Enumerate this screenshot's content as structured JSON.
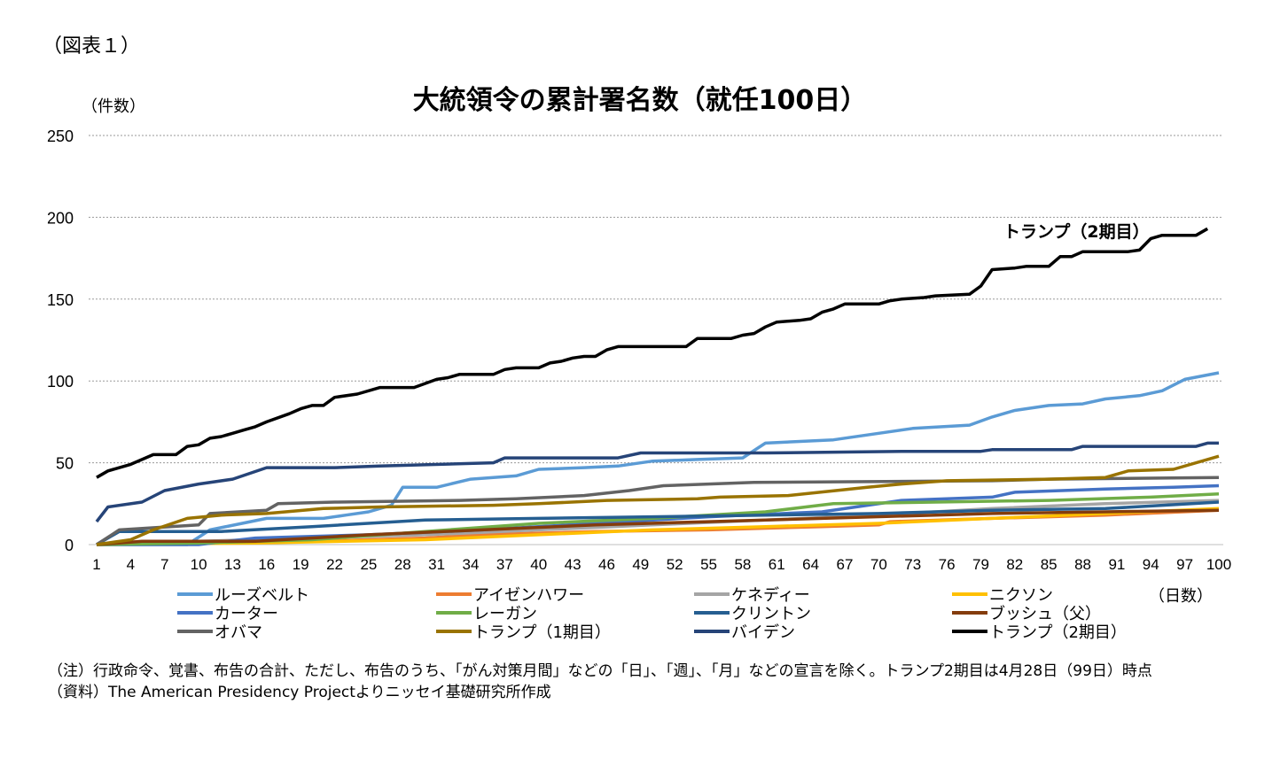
{
  "figure_label": "（図表１）",
  "chart_data": {
    "type": "line",
    "title": "大統領令の累計署名数（就任100日）",
    "ylabel": "（件数）",
    "xlabel": "（日数）",
    "ylim": [
      0,
      250
    ],
    "yticks": [
      0,
      50,
      100,
      150,
      200,
      250
    ],
    "xticks": [
      1,
      4,
      7,
      10,
      13,
      16,
      19,
      22,
      25,
      28,
      31,
      34,
      37,
      40,
      43,
      46,
      49,
      52,
      55,
      58,
      61,
      64,
      67,
      70,
      73,
      76,
      79,
      82,
      85,
      88,
      91,
      94,
      97,
      100
    ],
    "xlim": [
      1,
      100
    ],
    "grid": "horizontal dotted",
    "legend_position": "bottom",
    "annotation": {
      "text": "トランプ（2期目）",
      "x": 88,
      "y": 200
    },
    "series": [
      {
        "name": "ルーズベルト",
        "color": "#5b9bd5",
        "points": [
          [
            1,
            0
          ],
          [
            9,
            0
          ],
          [
            11,
            9
          ],
          [
            16,
            16
          ],
          [
            21,
            16
          ],
          [
            23,
            18
          ],
          [
            25,
            20
          ],
          [
            27,
            24
          ],
          [
            28,
            35
          ],
          [
            31,
            35
          ],
          [
            34,
            40
          ],
          [
            38,
            42
          ],
          [
            40,
            46
          ],
          [
            44,
            47
          ],
          [
            47,
            48
          ],
          [
            50,
            51
          ],
          [
            54,
            52
          ],
          [
            58,
            53
          ],
          [
            60,
            62
          ],
          [
            66,
            64
          ],
          [
            70,
            68
          ],
          [
            73,
            71
          ],
          [
            78,
            73
          ],
          [
            80,
            78
          ],
          [
            82,
            82
          ],
          [
            85,
            85
          ],
          [
            88,
            86
          ],
          [
            90,
            89
          ],
          [
            93,
            91
          ],
          [
            95,
            94
          ],
          [
            97,
            101
          ],
          [
            100,
            105
          ]
        ]
      },
      {
        "name": "アイゼンハワー",
        "color": "#ed7d31",
        "points": [
          [
            1,
            0
          ],
          [
            20,
            2
          ],
          [
            30,
            4
          ],
          [
            35,
            6
          ],
          [
            45,
            8
          ],
          [
            55,
            9
          ],
          [
            65,
            11
          ],
          [
            70,
            12
          ],
          [
            71,
            14
          ],
          [
            80,
            16
          ],
          [
            90,
            18
          ],
          [
            100,
            21
          ]
        ]
      },
      {
        "name": "ケネディー",
        "color": "#a5a5a5",
        "points": [
          [
            1,
            0
          ],
          [
            10,
            2
          ],
          [
            20,
            4
          ],
          [
            30,
            6
          ],
          [
            40,
            9
          ],
          [
            50,
            12
          ],
          [
            60,
            15
          ],
          [
            70,
            18
          ],
          [
            80,
            22
          ],
          [
            90,
            25
          ],
          [
            100,
            27
          ]
        ]
      },
      {
        "name": "ニクソン",
        "color": "#ffc000",
        "points": [
          [
            1,
            0
          ],
          [
            15,
            1
          ],
          [
            30,
            3
          ],
          [
            40,
            6
          ],
          [
            50,
            9
          ],
          [
            60,
            11
          ],
          [
            70,
            13
          ],
          [
            80,
            16
          ],
          [
            90,
            19
          ],
          [
            100,
            22
          ]
        ]
      },
      {
        "name": "カーター",
        "color": "#4472c4",
        "points": [
          [
            1,
            0
          ],
          [
            10,
            0
          ],
          [
            15,
            4
          ],
          [
            25,
            6
          ],
          [
            35,
            9
          ],
          [
            45,
            13
          ],
          [
            55,
            17
          ],
          [
            65,
            20
          ],
          [
            72,
            27
          ],
          [
            80,
            29
          ],
          [
            82,
            32
          ],
          [
            90,
            34
          ],
          [
            96,
            35
          ],
          [
            100,
            36
          ]
        ]
      },
      {
        "name": "レーガン",
        "color": "#70ad47",
        "points": [
          [
            1,
            0
          ],
          [
            10,
            1
          ],
          [
            20,
            3
          ],
          [
            30,
            8
          ],
          [
            40,
            13
          ],
          [
            50,
            16
          ],
          [
            60,
            20
          ],
          [
            66,
            25
          ],
          [
            75,
            26
          ],
          [
            85,
            27
          ],
          [
            94,
            29
          ],
          [
            100,
            31
          ]
        ]
      },
      {
        "name": "クリントン",
        "color": "#255e91",
        "points": [
          [
            1,
            0
          ],
          [
            3,
            8
          ],
          [
            12,
            8
          ],
          [
            20,
            11
          ],
          [
            30,
            15
          ],
          [
            40,
            16
          ],
          [
            50,
            17
          ],
          [
            60,
            18
          ],
          [
            70,
            19
          ],
          [
            80,
            21
          ],
          [
            90,
            22
          ],
          [
            100,
            26
          ]
        ]
      },
      {
        "name": "ブッシュ（父）",
        "color": "#843c0c",
        "points": [
          [
            1,
            0
          ],
          [
            5,
            2
          ],
          [
            15,
            2
          ],
          [
            25,
            6
          ],
          [
            35,
            9
          ],
          [
            45,
            12
          ],
          [
            55,
            14
          ],
          [
            65,
            16
          ],
          [
            75,
            18
          ],
          [
            80,
            19
          ],
          [
            90,
            20
          ],
          [
            100,
            21
          ]
        ]
      },
      {
        "name": "オバマ",
        "color": "#636363",
        "points": [
          [
            1,
            0
          ],
          [
            3,
            9
          ],
          [
            10,
            12
          ],
          [
            11,
            19
          ],
          [
            16,
            21
          ],
          [
            17,
            25
          ],
          [
            22,
            26
          ],
          [
            33,
            27
          ],
          [
            38,
            28
          ],
          [
            44,
            30
          ],
          [
            48,
            33
          ],
          [
            51,
            36
          ],
          [
            59,
            38
          ],
          [
            80,
            39
          ],
          [
            85,
            40
          ],
          [
            100,
            41
          ]
        ]
      },
      {
        "name": "トランプ（1期目）",
        "color": "#997300",
        "points": [
          [
            1,
            0
          ],
          [
            4,
            3
          ],
          [
            6,
            9
          ],
          [
            9,
            16
          ],
          [
            12,
            18
          ],
          [
            16,
            19
          ],
          [
            21,
            22
          ],
          [
            26,
            23
          ],
          [
            36,
            24
          ],
          [
            40,
            25
          ],
          [
            46,
            27
          ],
          [
            54,
            28
          ],
          [
            56,
            29
          ],
          [
            62,
            30
          ],
          [
            69,
            35
          ],
          [
            72,
            37
          ],
          [
            76,
            39
          ],
          [
            85,
            40
          ],
          [
            90,
            41
          ],
          [
            92,
            45
          ],
          [
            96,
            46
          ],
          [
            100,
            54
          ]
        ]
      },
      {
        "name": "バイデン",
        "color": "#264478",
        "points": [
          [
            1,
            14
          ],
          [
            2,
            23
          ],
          [
            5,
            26
          ],
          [
            7,
            33
          ],
          [
            10,
            37
          ],
          [
            13,
            40
          ],
          [
            16,
            47
          ],
          [
            22,
            47
          ],
          [
            26,
            48
          ],
          [
            36,
            50
          ],
          [
            37,
            53
          ],
          [
            47,
            53
          ],
          [
            49,
            56
          ],
          [
            60,
            56
          ],
          [
            72,
            57
          ],
          [
            79,
            57
          ],
          [
            80,
            58
          ],
          [
            87,
            58
          ],
          [
            88,
            60
          ],
          [
            98,
            60
          ],
          [
            99,
            62
          ],
          [
            100,
            62
          ]
        ]
      },
      {
        "name": "トランプ（2期目）",
        "color": "#000000",
        "points": [
          [
            1,
            41
          ],
          [
            2,
            45
          ],
          [
            4,
            49
          ],
          [
            5,
            52
          ],
          [
            6,
            55
          ],
          [
            8,
            55
          ],
          [
            9,
            60
          ],
          [
            10,
            61
          ],
          [
            11,
            65
          ],
          [
            12,
            66
          ],
          [
            13,
            68
          ],
          [
            14,
            70
          ],
          [
            15,
            72
          ],
          [
            16,
            75
          ],
          [
            18,
            80
          ],
          [
            19,
            83
          ],
          [
            20,
            85
          ],
          [
            21,
            85
          ],
          [
            22,
            90
          ],
          [
            24,
            92
          ],
          [
            26,
            96
          ],
          [
            29,
            96
          ],
          [
            31,
            101
          ],
          [
            32,
            102
          ],
          [
            33,
            104
          ],
          [
            36,
            104
          ],
          [
            37,
            107
          ],
          [
            38,
            108
          ],
          [
            40,
            108
          ],
          [
            41,
            111
          ],
          [
            42,
            112
          ],
          [
            43,
            114
          ],
          [
            44,
            115
          ],
          [
            45,
            115
          ],
          [
            46,
            119
          ],
          [
            47,
            121
          ],
          [
            53,
            121
          ],
          [
            54,
            126
          ],
          [
            57,
            126
          ],
          [
            58,
            128
          ],
          [
            59,
            129
          ],
          [
            60,
            133
          ],
          [
            61,
            136
          ],
          [
            63,
            137
          ],
          [
            64,
            138
          ],
          [
            65,
            142
          ],
          [
            66,
            144
          ],
          [
            67,
            147
          ],
          [
            70,
            147
          ],
          [
            71,
            149
          ],
          [
            72,
            150
          ],
          [
            74,
            151
          ],
          [
            75,
            152
          ],
          [
            78,
            153
          ],
          [
            79,
            158
          ],
          [
            80,
            168
          ],
          [
            82,
            169
          ],
          [
            83,
            170
          ],
          [
            85,
            170
          ],
          [
            86,
            176
          ],
          [
            87,
            176
          ],
          [
            88,
            179
          ],
          [
            92,
            179
          ],
          [
            93,
            180
          ],
          [
            94,
            187
          ],
          [
            95,
            189
          ],
          [
            97,
            189
          ],
          [
            98,
            189
          ],
          [
            99,
            193
          ]
        ]
      }
    ]
  },
  "notes": [
    "（注）行政命令、覚書、布告の合計、ただし、布告のうち、「がん対策月間」などの「日」、「週」、「月」などの宣言を除く。トランプ2期目は4月28日（99日）時点",
    "（資料）The American Presidency Projectよりニッセイ基礎研究所作成"
  ]
}
